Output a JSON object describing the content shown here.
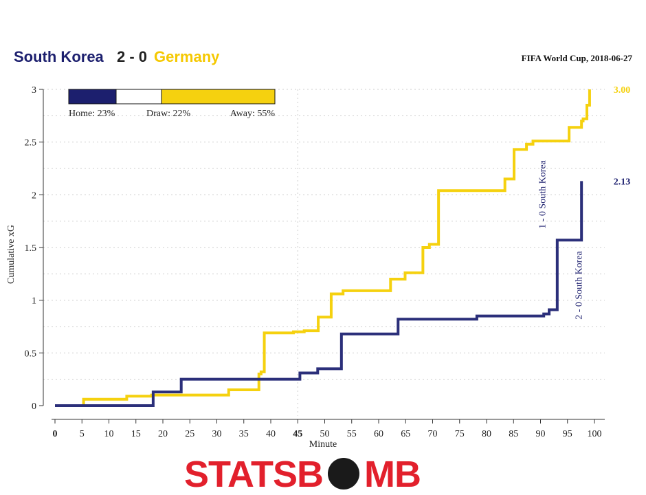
{
  "header": {
    "home_team": "South Korea",
    "score": "2 - 0",
    "away_team": "Germany",
    "competition": "FIFA World Cup, 2018-06-27"
  },
  "colors": {
    "home": "#2b2f7a",
    "home_dark": "#1c1f6e",
    "away": "#f5d10f",
    "axis": "#333333",
    "grid": "#cccccc"
  },
  "probability_bar": {
    "home_label": "Home: 23%",
    "draw_label": "Draw: 22%",
    "away_label": "Away: 55%",
    "home": 0.23,
    "draw": 0.22,
    "away": 0.55
  },
  "chart_data": {
    "type": "line",
    "xlabel": "Minute",
    "ylabel": "Cumulative xG",
    "xlim": [
      0,
      100
    ],
    "ylim": [
      0,
      3
    ],
    "xticks": [
      0,
      5,
      10,
      15,
      20,
      25,
      30,
      35,
      40,
      45,
      50,
      55,
      60,
      65,
      70,
      75,
      80,
      85,
      90,
      95,
      100
    ],
    "xtick_labels": [
      "0",
      "5",
      "10",
      "15",
      "20",
      "25",
      "30",
      "35",
      "40",
      "45",
      "50",
      "55",
      "60",
      "65",
      "70",
      "75",
      "80",
      "85",
      "90",
      "95",
      "100"
    ],
    "yticks": [
      0,
      0.5,
      1,
      1.5,
      2,
      2.5,
      3
    ],
    "ytick_labels": [
      "0",
      "0.5",
      "1",
      "1.5",
      "2",
      "2.5",
      "3"
    ],
    "grid": true,
    "step": true,
    "series": [
      {
        "name": "Germany",
        "final_label": "3.00",
        "points": [
          [
            0,
            0
          ],
          [
            5.3,
            0.06
          ],
          [
            13.3,
            0.09
          ],
          [
            17.9,
            0.1
          ],
          [
            32.2,
            0.15
          ],
          [
            37.8,
            0.3
          ],
          [
            38.2,
            0.32
          ],
          [
            38.8,
            0.69
          ],
          [
            44.2,
            0.7
          ],
          [
            46.2,
            0.71
          ],
          [
            48.8,
            0.84
          ],
          [
            51.2,
            1.06
          ],
          [
            53.4,
            1.09
          ],
          [
            62.2,
            1.2
          ],
          [
            64.9,
            1.26
          ],
          [
            68.2,
            1.5
          ],
          [
            69.4,
            1.53
          ],
          [
            71.1,
            2.04
          ],
          [
            83.4,
            2.15
          ],
          [
            85.1,
            2.43
          ],
          [
            87.4,
            2.48
          ],
          [
            88.6,
            2.51
          ],
          [
            95.3,
            2.64
          ],
          [
            97.6,
            2.7
          ],
          [
            97.9,
            2.72
          ],
          [
            98.6,
            2.85
          ],
          [
            99.1,
            3.0
          ]
        ]
      },
      {
        "name": "South Korea",
        "final_label": "2.13",
        "points": [
          [
            0,
            0
          ],
          [
            18.2,
            0.13
          ],
          [
            23.4,
            0.25
          ],
          [
            45.4,
            0.31
          ],
          [
            48.7,
            0.35
          ],
          [
            53.1,
            0.68
          ],
          [
            63.6,
            0.82
          ],
          [
            78.2,
            0.85
          ],
          [
            90.6,
            0.87
          ],
          [
            91.6,
            0.91
          ],
          [
            93.1,
            1.57
          ],
          [
            97.6,
            2.13
          ]
        ]
      }
    ],
    "annotations": [
      {
        "label": "1 - 0 South Korea",
        "minute": 91
      },
      {
        "label": "2 - 0 South Korea",
        "minute": 95.5
      }
    ],
    "highlight_tick": "45"
  },
  "branding": {
    "left": "STATSB",
    "right": "MB"
  }
}
